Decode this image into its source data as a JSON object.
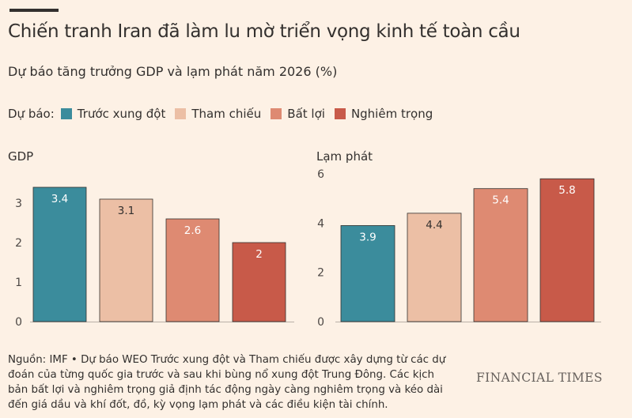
{
  "title": "Chiến tranh Iran đã làm lu mờ triển vọng kinh tế toàn cầu",
  "subtitle": "Dự báo tăng trưởng GDP và lạm phát năm 2026 (%)",
  "legend_label": "Dự báo:",
  "series": [
    {
      "name": "Trước xung đột",
      "color": "#3b8c9c"
    },
    {
      "name": "Tham chiếu",
      "color": "#ecbfa5"
    },
    {
      "name": "Bất lợi",
      "color": "#de8a72"
    },
    {
      "name": "Nghiêm trọng",
      "color": "#c85a49"
    }
  ],
  "chart_data": [
    {
      "type": "bar",
      "title": "GDP",
      "categories": [
        "Trước xung đột",
        "Tham chiếu",
        "Bất lợi",
        "Nghiêm trọng"
      ],
      "values": [
        3.4,
        3.1,
        2.6,
        2
      ],
      "labels": [
        "3.4",
        "3.1",
        "2.6",
        "2"
      ],
      "ylim": [
        0,
        3.6
      ],
      "yticks": [
        0,
        1,
        2,
        3
      ],
      "grid": false
    },
    {
      "type": "bar",
      "title": "Lạm phát",
      "categories": [
        "Trước xung đột",
        "Tham chiếu",
        "Bất lợi",
        "Nghiêm trọng"
      ],
      "values": [
        3.9,
        4.4,
        5.4,
        5.8
      ],
      "labels": [
        "3.9",
        "4.4",
        "5.4",
        "5.8"
      ],
      "ylim": [
        0,
        6
      ],
      "yticks": [
        0,
        2,
        4,
        6
      ],
      "grid": false
    }
  ],
  "source": "Nguồn: IMF • Dự báo WEO Trước xung đột và Tham chiếu được xây dựng từ các dự đoán của từng quốc gia trước và sau khi bùng nổ xung đột Trung Đông. Các kịch bản bất lợi và nghiêm trọng giả định tác động ngày càng nghiêm trọng và kéo dài đến giá dầu và khí đốt, đồ, kỳ vọng lạm phát và các điều kiện tài chính.",
  "brand": "FINANCIAL TIMES"
}
